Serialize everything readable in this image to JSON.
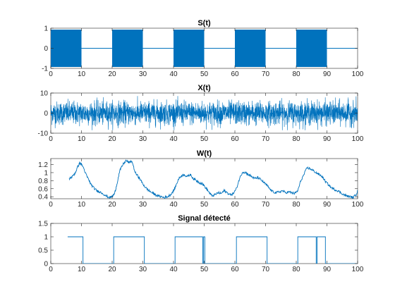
{
  "chart_data": [
    {
      "type": "line",
      "title": "S(t)",
      "xlabel": "",
      "ylabel": "",
      "xlim": [
        0,
        100
      ],
      "ylim": [
        -1,
        1
      ],
      "xticks": [
        0,
        10,
        20,
        30,
        40,
        50,
        60,
        70,
        80,
        90,
        100
      ],
      "yticks": [
        -1,
        0,
        1
      ],
      "line_color": "#0072BD",
      "description_of_signal": "",
      "series": [
        {
          "oscillation_amplitude": 0.93,
          "on_intervals": [
            [
              0,
              10
            ],
            [
              20,
              30
            ],
            [
              40,
              50
            ],
            [
              60,
              70
            ],
            [
              80,
              90
            ]
          ],
          "off_value": 0
        }
      ]
    },
    {
      "type": "line",
      "title": "X(t)",
      "xlabel": "",
      "ylabel": "",
      "xlim": [
        0,
        100
      ],
      "ylim": [
        -10,
        10
      ],
      "xticks": [
        0,
        10,
        20,
        30,
        40,
        50,
        60,
        70,
        80,
        90,
        100
      ],
      "yticks": [
        -10,
        0,
        10
      ],
      "line_color": "#0072BD",
      "series": [
        {
          "noise_peak": 8.5,
          "noise_typical": 4
        }
      ]
    },
    {
      "type": "line",
      "title": "W(t)",
      "xlabel": "",
      "ylabel": "",
      "xlim": [
        0,
        100
      ],
      "ylim": [
        0.35,
        1.35
      ],
      "xticks": [
        0,
        10,
        20,
        30,
        40,
        50,
        60,
        70,
        80,
        90,
        100
      ],
      "yticks": [
        0.4,
        0.6,
        0.8,
        1,
        1.2
      ],
      "ytick_labels": [
        "0.4",
        "0.6",
        "0.8",
        "1",
        "1.2"
      ],
      "line_color": "#0072BD",
      "series": [
        {
          "x": [
            6,
            7,
            8,
            8.8,
            9.5,
            10.5,
            11.5,
            12.5,
            13,
            14,
            15,
            16,
            17,
            18,
            19,
            20,
            20.8,
            21.5,
            22.5,
            23.5,
            24.5,
            25.5,
            26.5,
            27.5,
            28.5,
            29,
            30,
            31,
            32,
            33,
            34,
            35,
            36,
            37,
            38,
            39,
            40,
            40.5,
            41.5,
            42.5,
            43.5,
            44.5,
            45.5,
            46.5,
            47.5,
            48.5,
            49.5,
            50.5,
            51.5,
            52.5,
            53.5,
            54.5,
            55.5,
            56.5,
            57.5,
            58.5,
            59.5,
            60.5,
            61.5,
            62.5,
            63.5,
            64.5,
            65.5,
            66.5,
            67.5,
            68.5,
            69.5,
            70.5,
            71.5,
            72.5,
            73.5,
            74.5,
            75.5,
            76.5,
            77.5,
            78.5,
            79.5,
            80.5,
            81.5,
            82.5,
            83.5,
            84.5,
            85.5,
            86.5,
            87.5,
            88.5,
            89.5,
            90.5,
            91.5,
            92.5,
            93.5,
            94.5,
            95.5,
            96.5,
            97.5,
            98.5,
            99.5,
            100
          ],
          "y": [
            0.85,
            0.9,
            1.0,
            1.15,
            1.25,
            1.15,
            0.95,
            0.8,
            0.72,
            0.62,
            0.55,
            0.52,
            0.48,
            0.42,
            0.38,
            0.4,
            0.48,
            0.7,
            1.05,
            1.2,
            1.3,
            1.25,
            1.28,
            1.0,
            0.9,
            0.85,
            0.72,
            0.62,
            0.55,
            0.5,
            0.45,
            0.42,
            0.4,
            0.38,
            0.4,
            0.45,
            0.55,
            0.62,
            0.82,
            0.92,
            0.95,
            0.9,
            0.95,
            0.85,
            0.8,
            0.75,
            0.72,
            0.62,
            0.52,
            0.42,
            0.45,
            0.5,
            0.48,
            0.55,
            0.5,
            0.45,
            0.48,
            0.6,
            0.85,
            1.02,
            1.0,
            0.95,
            0.9,
            0.85,
            0.88,
            0.82,
            0.75,
            0.68,
            0.58,
            0.52,
            0.5,
            0.52,
            0.55,
            0.5,
            0.52,
            0.5,
            0.48,
            0.55,
            0.8,
            0.95,
            1.12,
            1.1,
            1.05,
            1.0,
            0.95,
            0.9,
            0.78,
            0.7,
            0.62,
            0.58,
            0.55,
            0.5,
            0.45,
            0.42,
            0.4,
            0.38,
            0.45,
            0.55
          ]
        }
      ]
    },
    {
      "type": "line",
      "title": "Signal détecté",
      "xlabel": "",
      "ylabel": "",
      "xlim": [
        0,
        100
      ],
      "ylim": [
        0,
        1.5
      ],
      "xticks": [
        0,
        10,
        20,
        30,
        40,
        50,
        60,
        70,
        80,
        90,
        100
      ],
      "yticks": [
        0,
        0.5,
        1,
        1.5
      ],
      "ytick_labels": [
        "0",
        "0.5",
        "1",
        "1.5"
      ],
      "line_color": "#0072BD",
      "series": [
        {
          "x": [
            5.5,
            10.5,
            10.5,
            20.5,
            20.5,
            30.5,
            30.5,
            40.5,
            40.5,
            49.5,
            49.5,
            49.8,
            49.8,
            50.2,
            50.2,
            60.5,
            60.5,
            70.5,
            70.5,
            80.5,
            80.5,
            86.5,
            86.5,
            86.8,
            86.8,
            89.5,
            89.5,
            100
          ],
          "y": [
            1,
            1,
            0,
            0,
            1,
            1,
            0,
            0,
            1,
            1,
            0,
            0,
            1,
            1,
            0,
            0,
            1,
            1,
            0,
            0,
            1,
            1,
            0,
            0,
            1,
            1,
            0,
            0
          ]
        }
      ]
    }
  ]
}
